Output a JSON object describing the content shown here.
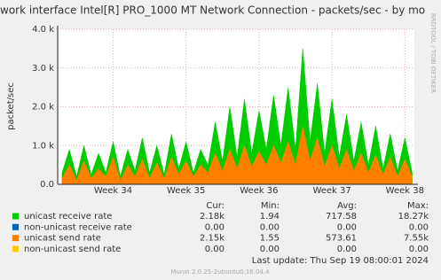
{
  "chart_data": {
    "type": "area",
    "title": "work interface Intel[R] PRO_1000 MT Network Connection - packets/sec - by mo",
    "y_label": "packet/sec",
    "side_label": "RRDTOOL / TOBI OETIKER",
    "x": [
      33.3,
      33.4,
      33.5,
      33.6,
      33.7,
      33.8,
      33.9,
      34.0,
      34.1,
      34.2,
      34.3,
      34.4,
      34.5,
      34.6,
      34.7,
      34.8,
      34.9,
      35.0,
      35.1,
      35.2,
      35.3,
      35.4,
      35.5,
      35.6,
      35.7,
      35.8,
      35.9,
      36.0,
      36.1,
      36.2,
      36.3,
      36.4,
      36.5,
      36.6,
      36.7,
      36.8,
      36.9,
      37.0,
      37.1,
      37.2,
      37.3,
      37.4,
      37.5,
      37.6,
      37.7,
      37.8,
      37.9,
      38.0,
      38.1
    ],
    "xlim": [
      33.24,
      38.13
    ],
    "xticks": [
      {
        "value": 34,
        "label": "Week 34"
      },
      {
        "value": 35,
        "label": "Week 35"
      },
      {
        "value": 36,
        "label": "Week 36"
      },
      {
        "value": 37,
        "label": "Week 37"
      },
      {
        "value": 38,
        "label": "Week 38"
      }
    ],
    "ylim": [
      0,
      4000
    ],
    "yticks": [
      {
        "value": 0,
        "label": "0.0"
      },
      {
        "value": 1000,
        "label": "1.0 k"
      },
      {
        "value": 2000,
        "label": "2.0 k"
      },
      {
        "value": 3000,
        "label": "3.0 k"
      },
      {
        "value": 4000,
        "label": "4.0 k"
      }
    ],
    "grid": true,
    "series": [
      {
        "name": "unicast receive rate",
        "color": "#00cc00",
        "values": [
          300,
          900,
          200,
          1000,
          250,
          800,
          300,
          1100,
          200,
          900,
          350,
          1200,
          300,
          1000,
          250,
          1300,
          400,
          1100,
          300,
          900,
          500,
          1600,
          600,
          2000,
          700,
          2200,
          800,
          1900,
          900,
          2300,
          1000,
          2500,
          900,
          3500,
          1100,
          2600,
          800,
          2200,
          700,
          1800,
          600,
          1600,
          500,
          1500,
          400,
          1300,
          350,
          1200,
          300
        ]
      },
      {
        "name": "non-unicast receive rate",
        "color": "#0066b3",
        "values": [
          0,
          0,
          0,
          0,
          0,
          0,
          0,
          0,
          0,
          0,
          0,
          0,
          0,
          0,
          0,
          0,
          0,
          0,
          0,
          0,
          0,
          0,
          0,
          0,
          0,
          0,
          0,
          0,
          0,
          0,
          0,
          0,
          0,
          0,
          0,
          0,
          0,
          0,
          0,
          0,
          0,
          0,
          0,
          0,
          0,
          0,
          0,
          0,
          0
        ]
      },
      {
        "name": "unicast send rate",
        "color": "#ff8000",
        "values": [
          150,
          500,
          100,
          600,
          150,
          400,
          200,
          700,
          100,
          500,
          200,
          650,
          150,
          550,
          150,
          700,
          250,
          600,
          200,
          500,
          300,
          800,
          350,
          900,
          400,
          1000,
          450,
          850,
          500,
          1000,
          550,
          1100,
          500,
          1500,
          600,
          1200,
          450,
          1000,
          400,
          900,
          350,
          800,
          300,
          750,
          250,
          700,
          200,
          650,
          180
        ]
      },
      {
        "name": "non-unicast send rate",
        "color": "#ffcc00",
        "values": [
          0,
          0,
          0,
          0,
          0,
          0,
          0,
          0,
          0,
          0,
          0,
          0,
          0,
          0,
          0,
          0,
          0,
          0,
          0,
          0,
          0,
          0,
          0,
          0,
          0,
          0,
          0,
          0,
          0,
          0,
          0,
          0,
          0,
          0,
          0,
          0,
          0,
          0,
          0,
          0,
          0,
          0,
          0,
          0,
          0,
          0,
          0,
          0,
          0
        ]
      }
    ],
    "stats": {
      "headers": [
        "Cur:",
        "Min:",
        "Avg:",
        "Max:"
      ],
      "rows": [
        [
          "2.18k",
          "1.94",
          "717.58",
          "18.27k"
        ],
        [
          "0.00",
          "0.00",
          "0.00",
          "0.00"
        ],
        [
          "2.15k",
          "1.55",
          "573.61",
          "7.55k"
        ],
        [
          "0.00",
          "0.00",
          "0.00",
          "0.00"
        ]
      ]
    },
    "last_update": "Last update:  Thu Sep 19 08:00:01 2024",
    "footer": "Munin 2.0.25-2ubuntu0.16.04.4"
  }
}
